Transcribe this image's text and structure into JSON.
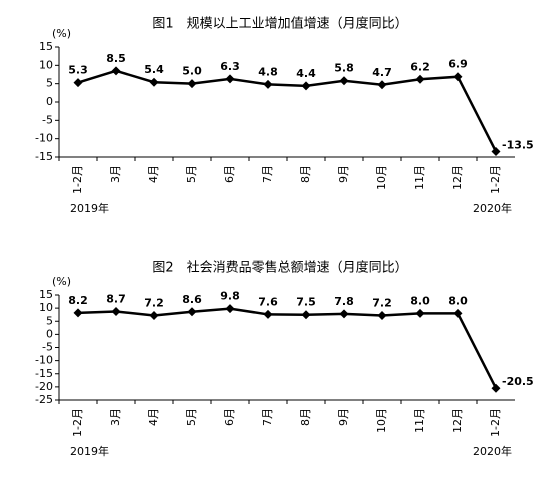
{
  "chart_data": [
    {
      "type": "line",
      "title": "图1　规模以上工业增加值增速（月度同比）",
      "y_label": "(%)",
      "categories": [
        "1-2月",
        "3月",
        "4月",
        "5月",
        "6月",
        "7月",
        "8月",
        "9月",
        "10月",
        "11月",
        "12月",
        "1-2月"
      ],
      "series": [
        {
          "color": "#000000",
          "values": [
            5.3,
            8.5,
            5.4,
            5.0,
            6.3,
            4.8,
            4.4,
            5.8,
            4.7,
            6.2,
            6.9,
            -13.5
          ],
          "value_labels": [
            "5.3",
            "8.5",
            "5.4",
            "5.0",
            "6.3",
            "4.8",
            "4.4",
            "5.8",
            "4.7",
            "6.2",
            "6.9",
            "-13.5"
          ]
        }
      ],
      "ylim": [
        -15,
        15
      ],
      "yticks": [
        -15,
        -10,
        -5,
        0,
        5,
        10,
        15
      ],
      "annotations": [
        "2019年",
        "2020年"
      ]
    },
    {
      "type": "line",
      "title": "图2　社会消费品零售总额增速（月度同比）",
      "y_label": "(%)",
      "categories": [
        "1-2月",
        "3月",
        "4月",
        "5月",
        "6月",
        "7月",
        "8月",
        "9月",
        "10月",
        "11月",
        "12月",
        "1-2月"
      ],
      "series": [
        {
          "color": "#000000",
          "values": [
            8.2,
            8.7,
            7.2,
            8.6,
            9.8,
            7.6,
            7.5,
            7.8,
            7.2,
            8.0,
            8.0,
            -20.5
          ],
          "value_labels": [
            "8.2",
            "8.7",
            "7.2",
            "8.6",
            "9.8",
            "7.6",
            "7.5",
            "7.8",
            "7.2",
            "8.0",
            "8.0",
            "-20.5"
          ]
        }
      ],
      "ylim": [
        -25,
        15
      ],
      "yticks": [
        -25,
        -20,
        -15,
        -10,
        -5,
        0,
        5,
        10,
        15
      ],
      "annotations": [
        "2019年",
        "2020年"
      ]
    }
  ]
}
